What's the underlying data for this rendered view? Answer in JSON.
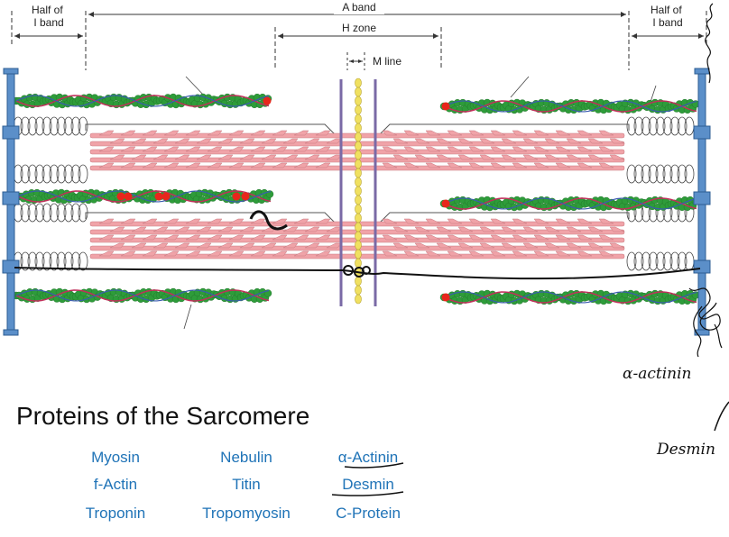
{
  "diagram": {
    "labels": {
      "half_i_band_left": [
        "Half of",
        "I band"
      ],
      "a_band": "A band",
      "half_i_band_right": [
        "Half of",
        "I band"
      ],
      "h_zone": "H zone",
      "m_line": "M line"
    },
    "annotations": {
      "alpha_actinin": "α-actinin",
      "desmin": "Desmin"
    },
    "colors": {
      "z_disc": "#5b8fc9",
      "thick_filament": "#f0a3a8",
      "actin_bead": "#2e9c3a",
      "tropomyosin": "#c0305a",
      "troponin": "#e8261c",
      "m_line": "#f0e060",
      "m_line_bars": "#7a6aa6",
      "ink": "#111111"
    }
  },
  "title": "Proteins of the Sarcomere",
  "protein_columns": [
    [
      "Myosin",
      "f-Actin",
      "Troponin"
    ],
    [
      "Nebulin",
      "Titin",
      "Tropomyosin"
    ],
    [
      "α-Actinin",
      "Desmin",
      "C-Protein"
    ]
  ]
}
